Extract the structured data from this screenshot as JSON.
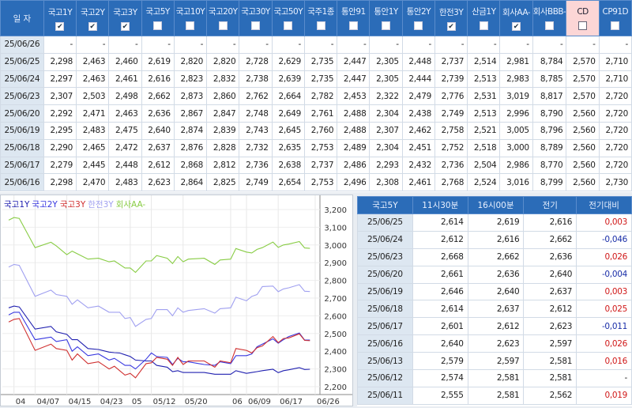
{
  "top_table": {
    "date_header": "일 자",
    "columns": [
      {
        "label": "국고1Y",
        "checked": true
      },
      {
        "label": "국고2Y",
        "checked": true
      },
      {
        "label": "국고3Y",
        "checked": true
      },
      {
        "label": "국고5Y",
        "checked": false
      },
      {
        "label": "국고10Y",
        "checked": false
      },
      {
        "label": "국고20Y",
        "checked": false
      },
      {
        "label": "국고30Y",
        "checked": false
      },
      {
        "label": "국고50Y",
        "checked": false
      },
      {
        "label": "국주1종",
        "checked": false
      },
      {
        "label": "통안91",
        "checked": false
      },
      {
        "label": "통안1Y",
        "checked": false
      },
      {
        "label": "통안2Y",
        "checked": false
      },
      {
        "label": "한전3Y",
        "checked": true
      },
      {
        "label": "산금1Y",
        "checked": false
      },
      {
        "label": "회사AA-",
        "checked": true
      },
      {
        "label": "회사BBB-",
        "checked": false
      },
      {
        "label": "CD",
        "checked": false,
        "highlight": "#fcd6d6"
      },
      {
        "label": "CP91D",
        "checked": false
      }
    ],
    "rows": [
      {
        "date": "25/06/26",
        "values": [
          "-",
          "-",
          "-",
          "-",
          "-",
          "-",
          "-",
          "-",
          "-",
          "-",
          "-",
          "-",
          "-",
          "-",
          "-",
          "-",
          "-",
          "-"
        ]
      },
      {
        "date": "25/06/25",
        "values": [
          "2,298",
          "2,463",
          "2,460",
          "2,619",
          "2,820",
          "2,820",
          "2,728",
          "2,629",
          "2,735",
          "2,447",
          "2,305",
          "2,448",
          "2,737",
          "2,514",
          "2,981",
          "8,784",
          "2,570",
          "2,710"
        ]
      },
      {
        "date": "25/06/24",
        "values": [
          "2,297",
          "2,463",
          "2,461",
          "2,616",
          "2,823",
          "2,832",
          "2,738",
          "2,639",
          "2,735",
          "2,447",
          "2,305",
          "2,444",
          "2,739",
          "2,513",
          "2,983",
          "8,785",
          "2,570",
          "2,710"
        ]
      },
      {
        "date": "25/06/23",
        "values": [
          "2,307",
          "2,503",
          "2,498",
          "2,662",
          "2,873",
          "2,860",
          "2,762",
          "2,664",
          "2,782",
          "2,453",
          "2,322",
          "2,479",
          "2,776",
          "2,531",
          "3,019",
          "8,817",
          "2,570",
          "2,720"
        ]
      },
      {
        "date": "25/06/20",
        "values": [
          "2,292",
          "2,471",
          "2,463",
          "2,636",
          "2,867",
          "2,847",
          "2,748",
          "2,649",
          "2,761",
          "2,488",
          "2,304",
          "2,438",
          "2,749",
          "2,513",
          "2,996",
          "8,790",
          "2,560",
          "2,720"
        ]
      },
      {
        "date": "25/06/19",
        "values": [
          "2,295",
          "2,483",
          "2,475",
          "2,640",
          "2,874",
          "2,839",
          "2,743",
          "2,645",
          "2,760",
          "2,488",
          "2,307",
          "2,462",
          "2,758",
          "2,521",
          "3,005",
          "8,796",
          "2,560",
          "2,720"
        ]
      },
      {
        "date": "25/06/18",
        "values": [
          "2,290",
          "2,465",
          "2,472",
          "2,637",
          "2,876",
          "2,828",
          "2,732",
          "2,635",
          "2,753",
          "2,489",
          "2,304",
          "2,451",
          "2,752",
          "2,518",
          "3,000",
          "8,789",
          "2,560",
          "2,720"
        ]
      },
      {
        "date": "25/06/17",
        "values": [
          "2,279",
          "2,445",
          "2,448",
          "2,612",
          "2,868",
          "2,812",
          "2,736",
          "2,638",
          "2,737",
          "2,486",
          "2,293",
          "2,432",
          "2,736",
          "2,504",
          "2,986",
          "8,770",
          "2,560",
          "2,720"
        ]
      },
      {
        "date": "25/06/16",
        "values": [
          "2,298",
          "2,470",
          "2,483",
          "2,623",
          "2,864",
          "2,825",
          "2,749",
          "2,654",
          "2,753",
          "2,496",
          "2,308",
          "2,461",
          "2,768",
          "2,524",
          "3,016",
          "8,799",
          "2,560",
          "2,730"
        ]
      }
    ]
  },
  "chart_data": {
    "type": "line",
    "ylim": [
      2200,
      3200
    ],
    "y_ticks": [
      "3,200",
      "3,100",
      "3,000",
      "2,900",
      "2,800",
      "2,700",
      "2,600",
      "2,500",
      "2,400",
      "2,300",
      "2,200"
    ],
    "x_ticks": [
      {
        "label": "04",
        "date": "2025-04-01"
      },
      {
        "label": "04/07",
        "date": "2025-04-07"
      },
      {
        "label": "04/15",
        "date": "2025-04-15"
      },
      {
        "label": "04/23",
        "date": "2025-04-23"
      },
      {
        "label": "05",
        "date": "2025-05-02"
      },
      {
        "label": "05/12",
        "date": "2025-05-12"
      },
      {
        "label": "05/20",
        "date": "2025-05-20"
      },
      {
        "label": "06",
        "date": "2025-06-02"
      },
      {
        "label": "06/09",
        "date": "2025-06-09"
      },
      {
        "label": "06/17",
        "date": "2025-06-17"
      },
      {
        "label": "06/26",
        "date": "2025-06-26"
      }
    ],
    "grid": true,
    "legend_position": "top-left",
    "x": [
      "2025-03-31",
      "2025-04-01",
      "2025-04-02",
      "2025-04-07",
      "2025-04-10",
      "2025-04-11",
      "2025-04-15",
      "2025-04-16",
      "2025-04-17",
      "2025-04-21",
      "2025-04-23",
      "2025-04-25",
      "2025-04-28",
      "2025-04-29",
      "2025-04-30",
      "2025-05-02",
      "2025-05-07",
      "2025-05-09",
      "2025-05-12",
      "2025-05-13",
      "2025-05-15",
      "2025-05-16",
      "2025-05-19",
      "2025-05-20",
      "2025-05-21",
      "2025-05-26",
      "2025-05-28",
      "2025-05-29",
      "2025-06-02",
      "2025-06-04",
      "2025-06-09",
      "2025-06-10",
      "2025-06-11",
      "2025-06-12",
      "2025-06-16",
      "2025-06-17",
      "2025-06-18",
      "2025-06-19",
      "2025-06-23",
      "2025-06-24",
      "2025-06-25"
    ],
    "series": [
      {
        "name": "국고1Y",
        "color": "#2020b0",
        "values": [
          2645,
          2655,
          2650,
          2525,
          2540,
          2510,
          2495,
          2465,
          2465,
          2415,
          2410,
          2395,
          2392,
          2390,
          2380,
          2370,
          2350,
          2345,
          2345,
          2320,
          2310,
          2285,
          2290,
          2280,
          2280,
          2280,
          2270,
          2270,
          2270,
          2290,
          2275,
          2280,
          2285,
          2290,
          2298,
          2279,
          2290,
          2295,
          2307,
          2297,
          2298
        ]
      },
      {
        "name": "국고2Y",
        "color": "#3838e0",
        "values": [
          2605,
          2620,
          2620,
          2465,
          2480,
          2455,
          2465,
          2400,
          2425,
          2375,
          2385,
          2350,
          2360,
          2340,
          2320,
          2320,
          2300,
          2355,
          2390,
          2370,
          2365,
          2325,
          2360,
          2340,
          2340,
          2325,
          2320,
          2340,
          2330,
          2375,
          2375,
          2385,
          2425,
          2440,
          2470,
          2445,
          2465,
          2483,
          2503,
          2463,
          2463
        ]
      },
      {
        "name": "국고3Y",
        "color": "#d03030",
        "values": [
          2565,
          2580,
          2585,
          2405,
          2440,
          2415,
          2405,
          2350,
          2385,
          2330,
          2340,
          2300,
          2315,
          2290,
          2265,
          2275,
          2250,
          2330,
          2335,
          2365,
          2355,
          2320,
          2365,
          2325,
          2345,
          2345,
          2310,
          2345,
          2335,
          2415,
          2405,
          2390,
          2420,
          2430,
          2483,
          2448,
          2472,
          2475,
          2498,
          2461,
          2460
        ]
      },
      {
        "name": "한전3Y",
        "color": "#a0a0f0",
        "values": [
          2875,
          2890,
          2885,
          2710,
          2745,
          2720,
          2710,
          2665,
          2690,
          2645,
          2655,
          2620,
          2620,
          2620,
          2585,
          2590,
          2540,
          2580,
          2585,
          2635,
          2635,
          2600,
          2645,
          2620,
          2630,
          2640,
          2615,
          2640,
          2645,
          2705,
          2685,
          2710,
          2720,
          2765,
          2768,
          2736,
          2752,
          2758,
          2776,
          2739,
          2737
        ]
      },
      {
        "name": "회사AA-",
        "color": "#88cc44",
        "values": [
          3140,
          3155,
          3150,
          2985,
          3015,
          2995,
          2945,
          2965,
          2950,
          2920,
          2925,
          2905,
          2910,
          2890,
          2870,
          2870,
          2845,
          2910,
          2910,
          2940,
          2925,
          2895,
          2935,
          2905,
          2920,
          2925,
          2890,
          2915,
          2920,
          2980,
          2960,
          2955,
          2975,
          2985,
          3016,
          2986,
          3000,
          3005,
          3019,
          2983,
          2981
        ]
      }
    ]
  },
  "right_table": {
    "headers": [
      "국고5Y",
      "11시30분",
      "16시00분",
      "전기",
      "전기대비"
    ],
    "rows": [
      {
        "date": "25/06/25",
        "v1": "2,614",
        "v2": "2,619",
        "prev": "2,616",
        "chg": "0,003",
        "dir": "up"
      },
      {
        "date": "25/06/24",
        "v1": "2,612",
        "v2": "2,616",
        "prev": "2,662",
        "chg": "-0,046",
        "dir": "dn"
      },
      {
        "date": "25/06/23",
        "v1": "2,668",
        "v2": "2,662",
        "prev": "2,636",
        "chg": "0,026",
        "dir": "up"
      },
      {
        "date": "25/06/20",
        "v1": "2,661",
        "v2": "2,636",
        "prev": "2,640",
        "chg": "-0,004",
        "dir": "dn"
      },
      {
        "date": "25/06/19",
        "v1": "2,646",
        "v2": "2,640",
        "prev": "2,637",
        "chg": "0,003",
        "dir": "up"
      },
      {
        "date": "25/06/18",
        "v1": "2,614",
        "v2": "2,637",
        "prev": "2,612",
        "chg": "0,025",
        "dir": "up"
      },
      {
        "date": "25/06/17",
        "v1": "2,601",
        "v2": "2,612",
        "prev": "2,623",
        "chg": "-0,011",
        "dir": "dn"
      },
      {
        "date": "25/06/16",
        "v1": "2,640",
        "v2": "2,623",
        "prev": "2,597",
        "chg": "0,026",
        "dir": "up"
      },
      {
        "date": "25/06/13",
        "v1": "2,579",
        "v2": "2,597",
        "prev": "2,581",
        "chg": "0,016",
        "dir": "up"
      },
      {
        "date": "25/06/12",
        "v1": "2,574",
        "v2": "2,581",
        "prev": "2,581",
        "chg": "-",
        "dir": ""
      },
      {
        "date": "25/06/11",
        "v1": "2,555",
        "v2": "2,581",
        "prev": "2,562",
        "chg": "0,019",
        "dir": "up"
      }
    ]
  }
}
